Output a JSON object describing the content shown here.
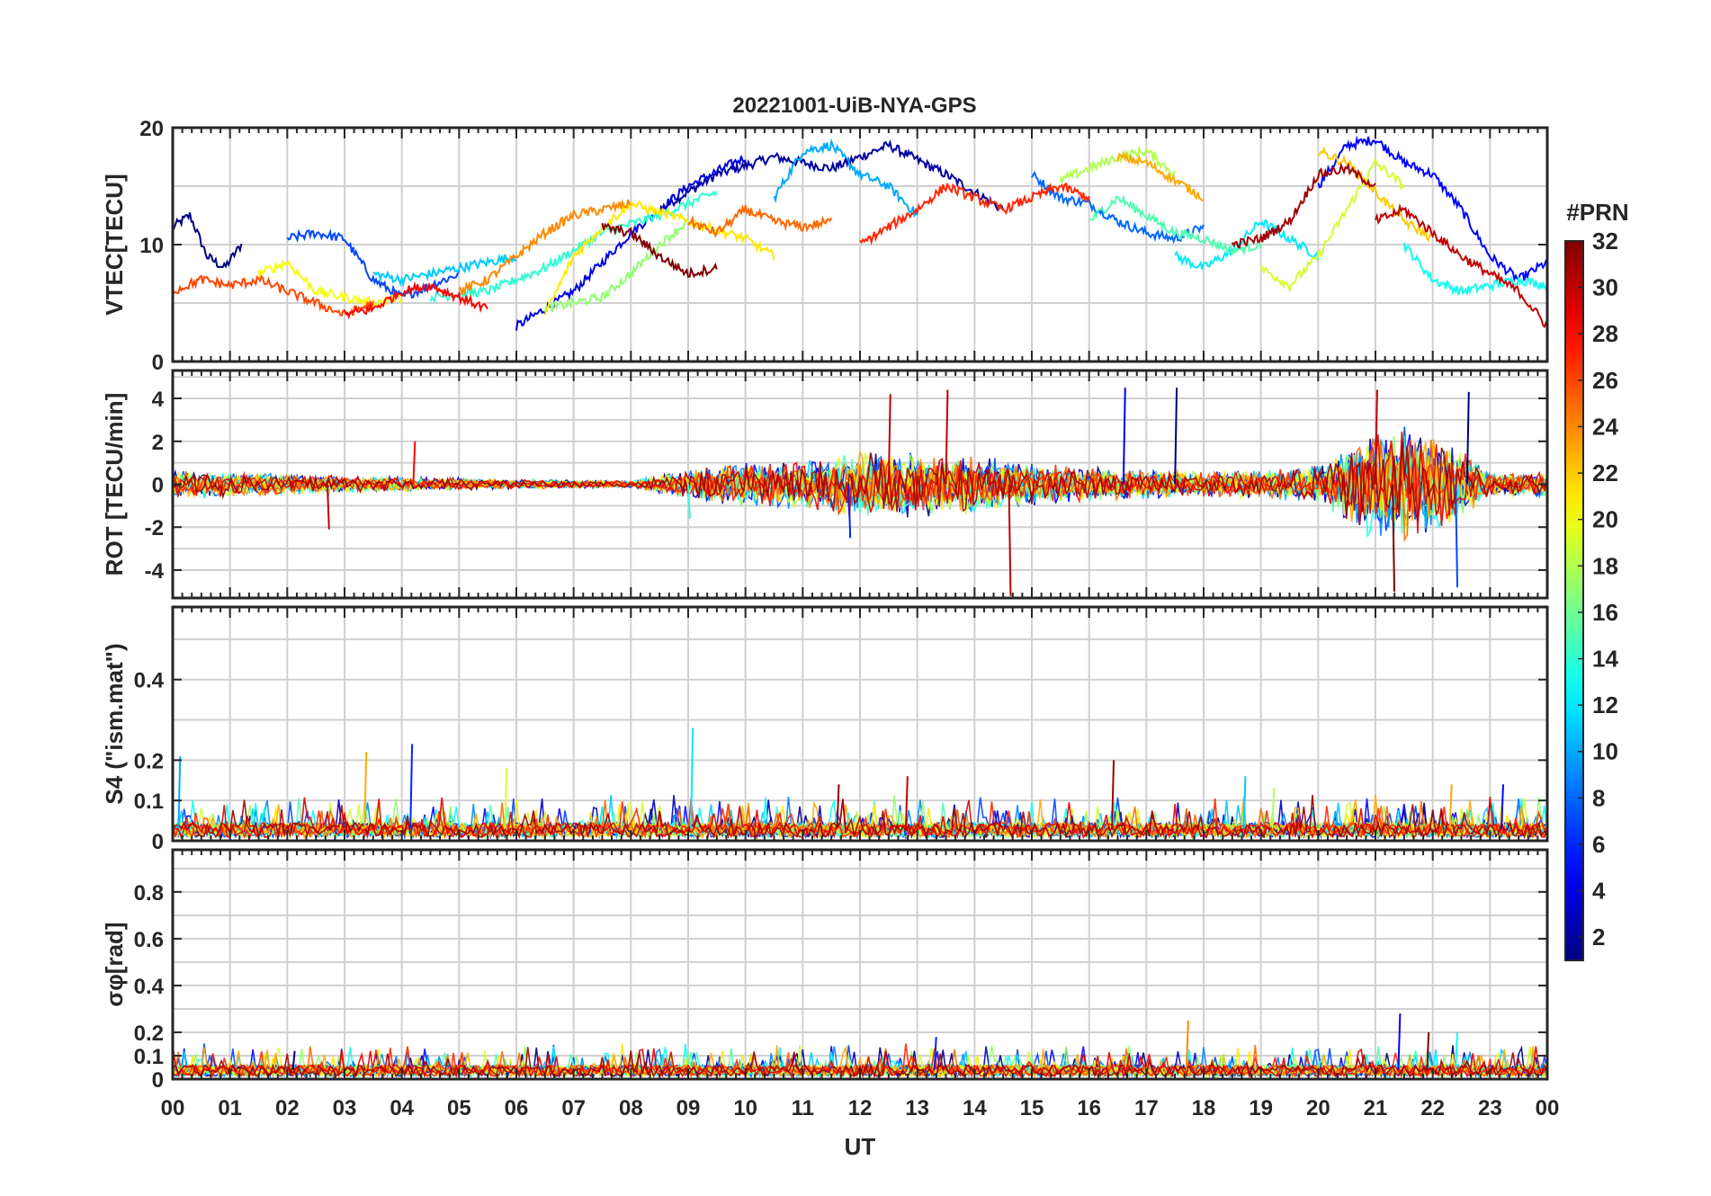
{
  "chart_data": [
    {
      "type": "line",
      "panel": "vtec",
      "title": "20221001-UiB-NYA-GPS",
      "ylabel": "VTEC[TECU]",
      "ylim": [
        0,
        20
      ],
      "yticks": [
        "0",
        "10",
        "20"
      ],
      "ytick_values": [
        0,
        10,
        20
      ],
      "ygrid": [
        5,
        10,
        15
      ],
      "series": [
        {
          "name": "PRN 1",
          "prn": 1,
          "x": [
            0.0,
            0.3,
            0.6,
            0.9,
            1.2
          ],
          "values": [
            11.5,
            12.5,
            9.0,
            8.0,
            10.0
          ]
        },
        {
          "name": "PRN 2",
          "prn": 2,
          "x": [
            8.5,
            9.5,
            10.5,
            11.5,
            12.5,
            13.5,
            14.5
          ],
          "values": [
            13.0,
            16.0,
            17.5,
            16.5,
            18.5,
            16.0,
            13.0
          ]
        },
        {
          "name": "PRN 4",
          "prn": 4,
          "x": [
            6.0,
            7.0,
            8.0,
            9.0,
            10.0
          ],
          "values": [
            3.0,
            6.0,
            11.0,
            15.0,
            17.5
          ]
        },
        {
          "name": "PRN 5",
          "prn": 5,
          "x": [
            20.0,
            20.5,
            21.0,
            21.5,
            22.0,
            22.5,
            23.0,
            23.5,
            24.0
          ],
          "values": [
            15.0,
            18.5,
            19.0,
            17.0,
            16.0,
            13.0,
            9.0,
            7.0,
            8.5
          ]
        },
        {
          "name": "PRN 7",
          "prn": 7,
          "x": [
            2.0,
            2.5,
            3.0,
            3.5,
            4.0,
            4.5,
            5.0
          ],
          "values": [
            10.5,
            11.0,
            10.5,
            7.0,
            5.5,
            6.5,
            7.5
          ]
        },
        {
          "name": "PRN 8",
          "prn": 8,
          "x": [
            15.0,
            15.5,
            16.0,
            16.5,
            17.0,
            17.5,
            18.0
          ],
          "values": [
            16.0,
            14.0,
            13.5,
            12.0,
            11.0,
            10.5,
            11.5
          ]
        },
        {
          "name": "PRN 10",
          "prn": 10,
          "x": [
            10.5,
            11.0,
            11.5,
            12.0,
            12.5,
            13.0
          ],
          "values": [
            14.0,
            18.0,
            18.5,
            16.0,
            15.0,
            12.5
          ]
        },
        {
          "name": "PRN 11",
          "prn": 11,
          "x": [
            3.5,
            4.0,
            4.5,
            5.0,
            5.5,
            6.0
          ],
          "values": [
            7.5,
            7.0,
            7.5,
            8.0,
            8.5,
            9.0
          ]
        },
        {
          "name": "PRN 12",
          "prn": 12,
          "x": [
            17.5,
            18.0,
            18.5,
            19.0,
            19.5,
            20.0
          ],
          "values": [
            9.0,
            8.0,
            9.5,
            12.0,
            10.5,
            9.0
          ]
        },
        {
          "name": "PRN 13",
          "prn": 13,
          "x": [
            21.5,
            22.0,
            22.5,
            23.0,
            23.5,
            24.0
          ],
          "values": [
            10.0,
            7.0,
            6.0,
            6.5,
            7.0,
            6.5
          ]
        },
        {
          "name": "PRN 14",
          "prn": 14,
          "x": [
            4.5,
            5.5,
            6.5,
            7.5,
            8.5,
            9.5
          ],
          "values": [
            5.5,
            6.0,
            8.0,
            11.0,
            12.5,
            14.5
          ]
        },
        {
          "name": "PRN 15",
          "prn": 15,
          "x": [
            16.0,
            16.5,
            17.0,
            17.5,
            18.0,
            18.5,
            19.0
          ],
          "values": [
            12.0,
            14.0,
            12.5,
            11.0,
            10.5,
            9.5,
            10.0
          ]
        },
        {
          "name": "PRN 17",
          "prn": 17,
          "x": [
            6.5,
            7.0,
            7.5,
            8.0,
            8.5,
            9.0
          ],
          "values": [
            4.5,
            5.0,
            5.5,
            7.5,
            10.0,
            12.0
          ]
        },
        {
          "name": "PRN 18",
          "prn": 18,
          "x": [
            15.5,
            16.0,
            16.5,
            17.0,
            17.5
          ],
          "values": [
            15.5,
            16.5,
            17.5,
            18.0,
            16.0
          ]
        },
        {
          "name": "PRN 19",
          "prn": 19,
          "x": [
            19.0,
            19.5,
            20.0,
            20.5,
            21.0,
            21.5
          ],
          "values": [
            8.0,
            6.5,
            9.0,
            13.0,
            17.0,
            15.0
          ]
        },
        {
          "name": "PRN 20",
          "prn": 20,
          "x": [
            1.5,
            2.0,
            2.5,
            3.0,
            3.5,
            4.0
          ],
          "values": [
            7.5,
            8.5,
            6.0,
            5.5,
            5.0,
            5.5
          ]
        },
        {
          "name": "PRN 21",
          "prn": 21,
          "x": [
            6.5,
            7.0,
            7.5,
            8.0,
            9.0,
            10.0,
            10.5
          ],
          "values": [
            4.0,
            9.0,
            11.5,
            13.5,
            12.0,
            10.5,
            9.0
          ]
        },
        {
          "name": "PRN 22",
          "prn": 22,
          "x": [
            20.0,
            20.5,
            21.0,
            21.5,
            22.0
          ],
          "values": [
            18.0,
            17.0,
            14.5,
            12.0,
            10.5
          ]
        },
        {
          "name": "PRN 23",
          "prn": 23,
          "x": [
            16.5,
            17.0,
            17.5,
            18.0
          ],
          "values": [
            17.5,
            17.0,
            15.5,
            14.0
          ]
        },
        {
          "name": "PRN 24",
          "prn": 24,
          "x": [
            5.0,
            5.5,
            6.0,
            6.5,
            7.0,
            8.0
          ],
          "values": [
            6.0,
            7.0,
            9.0,
            11.0,
            12.5,
            13.5
          ]
        },
        {
          "name": "PRN 25",
          "prn": 25,
          "x": [
            9.0,
            9.5,
            10.0,
            10.5,
            11.0,
            11.5
          ],
          "values": [
            12.0,
            11.0,
            13.0,
            12.0,
            11.5,
            12.0
          ]
        },
        {
          "name": "PRN 26",
          "prn": 26,
          "x": [
            0.0,
            0.5,
            1.0,
            1.5,
            2.0,
            2.5,
            3.0,
            3.5
          ],
          "values": [
            6.0,
            7.0,
            6.5,
            7.0,
            6.0,
            5.0,
            4.0,
            5.0
          ]
        },
        {
          "name": "PRN 27",
          "prn": 27,
          "x": [
            12.0,
            12.5,
            13.0,
            13.5,
            14.0,
            14.5,
            15.0,
            15.5,
            16.0
          ],
          "values": [
            10.0,
            11.5,
            13.0,
            15.0,
            14.0,
            13.0,
            14.0,
            15.0,
            14.0
          ]
        },
        {
          "name": "PRN 28",
          "prn": 28,
          "x": [
            3.0,
            3.5,
            4.0,
            4.5,
            5.0,
            5.5
          ],
          "values": [
            4.0,
            4.5,
            6.0,
            6.5,
            5.5,
            4.5
          ]
        },
        {
          "name": "PRN 30",
          "prn": 30,
          "x": [
            21.0,
            21.5,
            22.0,
            22.5,
            23.0,
            23.5,
            24.0
          ],
          "values": [
            12.0,
            13.0,
            11.0,
            9.0,
            7.5,
            6.0,
            3.0
          ]
        },
        {
          "name": "PRN 31",
          "prn": 31,
          "x": [
            18.5,
            19.0,
            19.5,
            20.0,
            20.5,
            21.0
          ],
          "values": [
            10.0,
            10.5,
            12.0,
            16.0,
            16.5,
            15.0
          ]
        },
        {
          "name": "PRN 32",
          "prn": 32,
          "x": [
            7.5,
            8.0,
            8.5,
            9.0,
            9.5
          ],
          "values": [
            11.5,
            11.0,
            9.0,
            7.5,
            8.0
          ]
        }
      ]
    },
    {
      "type": "line",
      "panel": "rot",
      "ylabel": "ROT [TECU/min]",
      "ylim": [
        -5.3,
        5.3
      ],
      "yticks": [
        "-4",
        "-2",
        "0",
        "2",
        "4"
      ],
      "ytick_values": [
        -4,
        -2,
        0,
        2,
        4
      ],
      "ygrid": [
        -4,
        -3,
        -2,
        -1,
        0,
        1,
        2,
        3,
        4,
        5
      ],
      "noise_envelope": {
        "x": [
          0,
          1,
          3,
          5,
          6,
          8,
          9,
          10,
          11,
          12,
          13,
          14,
          15,
          16,
          17,
          18,
          19,
          20,
          20.5,
          21,
          21.5,
          22,
          22.5,
          23,
          24
        ],
        "values": [
          0.6,
          0.5,
          0.35,
          0.25,
          0.2,
          0.15,
          0.6,
          0.9,
          1.0,
          1.4,
          1.3,
          1.2,
          0.9,
          0.7,
          0.6,
          0.5,
          0.6,
          0.8,
          1.5,
          2.2,
          2.4,
          2.0,
          1.4,
          0.5,
          0.5
        ]
      },
      "spikes": [
        {
          "x": 12.5,
          "value": 4.2
        },
        {
          "x": 13.5,
          "value": 4.4
        },
        {
          "x": 16.6,
          "value": 4.5
        },
        {
          "x": 17.5,
          "value": 4.5
        },
        {
          "x": 14.6,
          "value": -5.2
        },
        {
          "x": 21.3,
          "value": -5.0
        },
        {
          "x": 22.4,
          "value": -4.8
        },
        {
          "x": 22.6,
          "value": 4.3
        },
        {
          "x": 21.0,
          "value": 4.4
        },
        {
          "x": 11.8,
          "value": -2.5
        },
        {
          "x": 9.0,
          "value": -1.6
        },
        {
          "x": 4.2,
          "value": 2.0
        },
        {
          "x": 2.7,
          "value": -2.1
        }
      ]
    },
    {
      "type": "line",
      "panel": "s4",
      "ylabel": "S4 (\"ism.mat\")",
      "ylim": [
        0,
        0.58
      ],
      "yticks": [
        "0",
        "0.1",
        "0.2",
        "0.4"
      ],
      "ytick_values": [
        0,
        0.1,
        0.2,
        0.4
      ],
      "ygrid": [
        0.1,
        0.2,
        0.3,
        0.4,
        0.5
      ],
      "baseline": 0.03,
      "spikes": [
        {
          "x": 0.1,
          "value": 0.21
        },
        {
          "x": 3.35,
          "value": 0.22
        },
        {
          "x": 4.15,
          "value": 0.24
        },
        {
          "x": 5.8,
          "value": 0.18
        },
        {
          "x": 9.05,
          "value": 0.28
        },
        {
          "x": 16.4,
          "value": 0.2
        },
        {
          "x": 18.7,
          "value": 0.16
        },
        {
          "x": 11.6,
          "value": 0.14
        },
        {
          "x": 12.8,
          "value": 0.16
        },
        {
          "x": 23.2,
          "value": 0.14
        },
        {
          "x": 22.3,
          "value": 0.14
        },
        {
          "x": 19.2,
          "value": 0.13
        }
      ]
    },
    {
      "type": "line",
      "panel": "sigma_phi",
      "ylabel": "σφ[rad]",
      "xlabel": "UT",
      "ylim": [
        0,
        0.98
      ],
      "yticks": [
        "0",
        "0.1",
        "0.2",
        "0.4",
        "0.6",
        "0.8"
      ],
      "ytick_values": [
        0,
        0.1,
        0.2,
        0.4,
        0.6,
        0.8
      ],
      "ygrid": [
        0.1,
        0.2,
        0.3,
        0.4,
        0.5,
        0.6,
        0.7,
        0.8,
        0.9
      ],
      "baseline": 0.04,
      "spikes": [
        {
          "x": 17.7,
          "value": 0.25
        },
        {
          "x": 21.4,
          "value": 0.28
        },
        {
          "x": 21.9,
          "value": 0.2
        },
        {
          "x": 22.4,
          "value": 0.2
        },
        {
          "x": 13.3,
          "value": 0.18
        },
        {
          "x": 2.1,
          "value": 0.12
        }
      ]
    }
  ],
  "xaxis": {
    "label": "UT",
    "xlim": [
      0,
      24
    ],
    "ticks": [
      "00",
      "01",
      "02",
      "03",
      "04",
      "05",
      "06",
      "07",
      "08",
      "09",
      "10",
      "11",
      "12",
      "13",
      "14",
      "15",
      "16",
      "17",
      "18",
      "19",
      "20",
      "21",
      "22",
      "23",
      "00"
    ]
  },
  "colorbar": {
    "title": "#PRN",
    "range": [
      1,
      32
    ],
    "ticks": [
      "2",
      "4",
      "6",
      "8",
      "10",
      "12",
      "14",
      "16",
      "18",
      "20",
      "22",
      "24",
      "26",
      "28",
      "30",
      "32"
    ],
    "tick_values": [
      2,
      4,
      6,
      8,
      10,
      12,
      14,
      16,
      18,
      20,
      22,
      24,
      26,
      28,
      30,
      32
    ],
    "colormap": "jet"
  },
  "colors": {
    "axis": "#262626",
    "grid": "#d0d0d0",
    "background": "#ffffff"
  }
}
